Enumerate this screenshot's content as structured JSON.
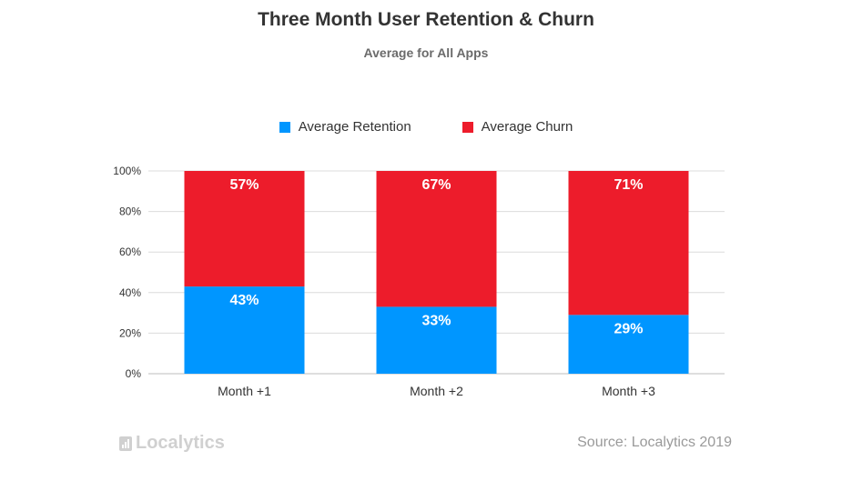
{
  "chart_data": {
    "type": "bar",
    "stacked": true,
    "title": "Three Month User Retention & Churn",
    "subtitle": "Average for All Apps",
    "categories": [
      "Month +1",
      "Month +2",
      "Month +3"
    ],
    "series": [
      {
        "name": "Average Retention",
        "color": "#0096ff",
        "values": [
          43,
          33,
          29
        ],
        "labels": [
          "43%",
          "33%",
          "29%"
        ]
      },
      {
        "name": "Average Churn",
        "color": "#ed1c2b",
        "values": [
          57,
          67,
          71
        ],
        "labels": [
          "57%",
          "67%",
          "71%"
        ]
      }
    ],
    "ylim": [
      0,
      100
    ],
    "yticks": [
      0,
      20,
      40,
      60,
      80,
      100
    ],
    "ytick_labels": [
      "0%",
      "20%",
      "40%",
      "60%",
      "80%",
      "100%"
    ],
    "xlabel": "",
    "ylabel": "",
    "grid": true,
    "legend": "top-center"
  },
  "footer": {
    "brand": "Localytics",
    "source": "Source: Localytics 2019"
  }
}
